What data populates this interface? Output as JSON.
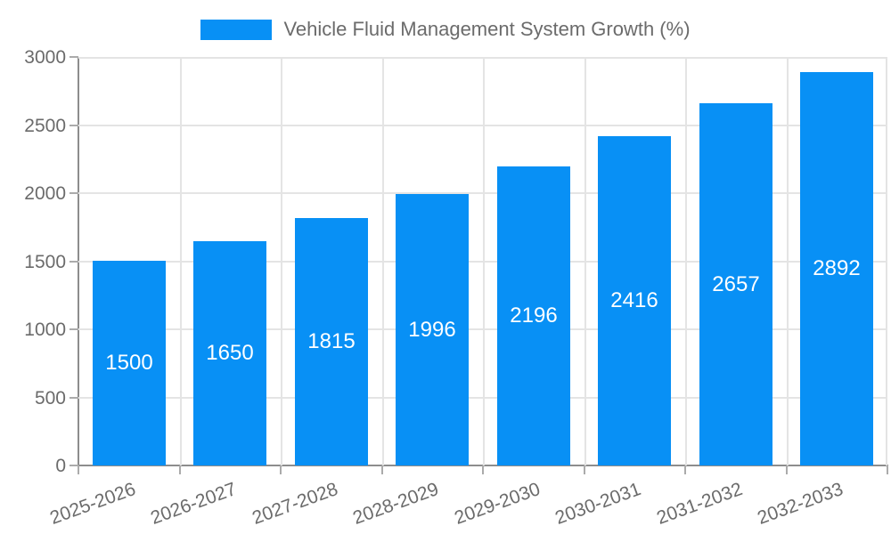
{
  "legend": {
    "label": "Vehicle Fluid Management System Growth (%)"
  },
  "colors": {
    "bar": "#0890f5",
    "grid": "#e4e4e4",
    "axis": "#8d8d8d",
    "tick_mark": "#ababab",
    "axis_text": "#6b6b6b",
    "bar_label_text": "#ffffff",
    "background": "#ffffff"
  },
  "chart_data": {
    "type": "bar",
    "title": "Vehicle Fluid Management System Growth (%)",
    "categories": [
      "2025-2026",
      "2026-2027",
      "2027-2028",
      "2028-2029",
      "2029-2030",
      "2030-2031",
      "2031-2032",
      "2032-2033"
    ],
    "values": [
      1500,
      1650,
      1815,
      1996,
      2196,
      2416,
      2657,
      2892
    ],
    "bar_value_labels": [
      "1500",
      "1650",
      "1815",
      "1996",
      "2196",
      "2416",
      "2657",
      "2892"
    ],
    "xlabel": "",
    "ylabel": "",
    "ylim": [
      0,
      3000
    ],
    "ytick_step": 500,
    "ytick_labels": [
      "0",
      "500",
      "1000",
      "1500",
      "2000",
      "2500",
      "3000"
    ],
    "grid": true,
    "legend_position": "top-center",
    "bar_labels_position": "inside-center",
    "x_tick_rotation_deg": -20
  }
}
